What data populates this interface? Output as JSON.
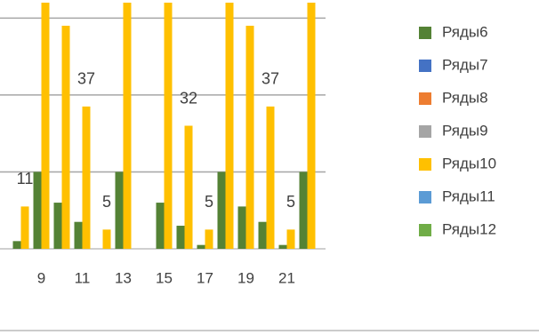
{
  "chart_data": {
    "type": "bar",
    "categories": [
      null,
      "9",
      null,
      "11",
      null,
      "13",
      null,
      "15",
      null,
      "17",
      null,
      "19",
      null,
      "21",
      null
    ],
    "series": [
      {
        "name": "Ряды6",
        "color": "#548235",
        "values": [
          2,
          20,
          12,
          7,
          0,
          20,
          0,
          12,
          6,
          1,
          20,
          11,
          7,
          1,
          20
        ]
      },
      {
        "name": "Ряды7",
        "color": "#4472c4",
        "values": [
          null,
          null,
          null,
          null,
          null,
          null,
          null,
          null,
          null,
          null,
          null,
          null,
          null,
          null,
          null
        ]
      },
      {
        "name": "Ряды8",
        "color": "#ed7d31",
        "values": [
          null,
          null,
          null,
          null,
          null,
          null,
          null,
          null,
          null,
          null,
          null,
          null,
          null,
          null,
          null
        ]
      },
      {
        "name": "Ряды9",
        "color": "#a5a5a5",
        "values": [
          null,
          null,
          null,
          null,
          null,
          null,
          null,
          null,
          null,
          null,
          null,
          null,
          null,
          null,
          null
        ]
      },
      {
        "name": "Ряды10",
        "color": "#ffc000",
        "values": [
          11,
          64,
          58,
          37,
          5,
          64,
          0,
          64,
          32,
          5,
          64,
          58,
          37,
          5,
          64
        ]
      },
      {
        "name": "Ряды11",
        "color": "#5b9bd5",
        "values": [
          null,
          null,
          null,
          null,
          null,
          null,
          null,
          null,
          null,
          null,
          null,
          null,
          null,
          null,
          null
        ]
      },
      {
        "name": "Ряды12",
        "color": "#70ad47",
        "values": [
          null,
          null,
          null,
          null,
          null,
          null,
          null,
          null,
          null,
          null,
          null,
          null,
          null,
          null,
          null
        ]
      }
    ],
    "ylim": [
      0,
      64
    ],
    "yticks": [
      0,
      20,
      40,
      60
    ],
    "grid": true,
    "legend": "right"
  }
}
